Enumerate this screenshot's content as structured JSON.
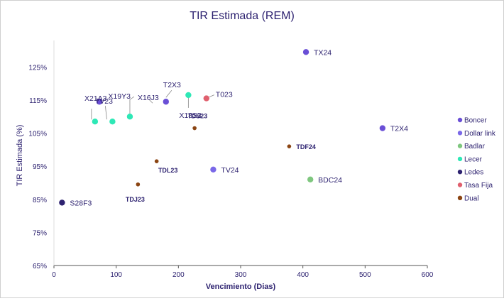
{
  "chart_data": {
    "type": "scatter",
    "title": "TIR Estimada (REM)",
    "xlabel": "Vencimiento (Dias)",
    "ylabel": "TIR Estimada (%)",
    "xlim": [
      0,
      600
    ],
    "ylim": [
      65,
      133
    ],
    "x_ticks": [
      "0",
      "100",
      "200",
      "300",
      "400",
      "500",
      "600"
    ],
    "y_ticks": [
      "65%",
      "75%",
      "85%",
      "95%",
      "105%",
      "115%",
      "125%"
    ],
    "grid": false,
    "legend_position": "right",
    "series": [
      {
        "name": "Boncer",
        "color": "#6a4fd6",
        "points": [
          {
            "label": "X21A3",
            "x": 73,
            "y": 114.5
          },
          {
            "label": "T2X3",
            "x": 180,
            "y": 114.5
          },
          {
            "label": "TX24",
            "x": 405,
            "y": 129.5
          },
          {
            "label": "T2X4",
            "x": 528,
            "y": 106.5
          }
        ]
      },
      {
        "name": "Dollar link",
        "color": "#7a68e8",
        "points": [
          {
            "label": "TV24",
            "x": 256,
            "y": 94
          }
        ]
      },
      {
        "name": "Badlar",
        "color": "#7fc77f",
        "points": [
          {
            "label": "BDC24",
            "x": 412,
            "y": 91
          }
        ]
      },
      {
        "name": "Lecer",
        "color": "#2ee8b6",
        "points": [
          {
            "label": "TV23",
            "x": 66,
            "y": 108.5
          },
          {
            "label": "X19Y3",
            "x": 94,
            "y": 108.5
          },
          {
            "label": "X16J3",
            "x": 122,
            "y": 110
          },
          {
            "label": "X18S3",
            "x": 216,
            "y": 116.5
          }
        ]
      },
      {
        "name": "Ledes",
        "color": "#2d2270",
        "points": [
          {
            "label": "S28F3",
            "x": 13,
            "y": 84
          }
        ]
      },
      {
        "name": "Tasa Fija",
        "color": "#e0606e",
        "points": [
          {
            "label": "T023",
            "x": 245,
            "y": 115.5
          }
        ]
      },
      {
        "name": "Dual",
        "color": "#8b4513",
        "points": [
          {
            "label": "TDJ23",
            "x": 135,
            "y": 89.5
          },
          {
            "label": "TDL23",
            "x": 165,
            "y": 96.5
          },
          {
            "label": "TDS23",
            "x": 226,
            "y": 106.5
          },
          {
            "label": "TDF24",
            "x": 378,
            "y": 101
          }
        ]
      }
    ]
  }
}
